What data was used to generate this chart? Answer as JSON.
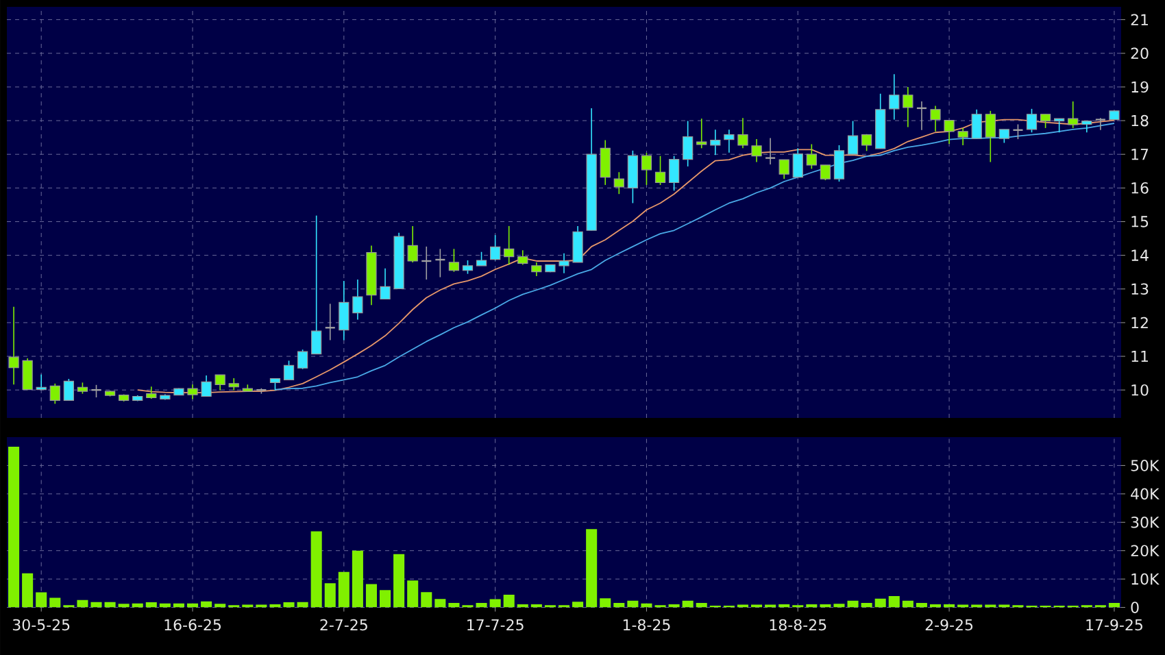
{
  "chart_data": [
    {
      "type": "candlestick",
      "categories": [
        null,
        null,
        null,
        null,
        null,
        null,
        null,
        null,
        null,
        null,
        null,
        null,
        null,
        null,
        null,
        null,
        null,
        null,
        null,
        null,
        null,
        null,
        null,
        null,
        null,
        null,
        null,
        null,
        null,
        null,
        null,
        null,
        null,
        null,
        null,
        null,
        null,
        null,
        null,
        null,
        null,
        null,
        null,
        null,
        null,
        null,
        null,
        null,
        null,
        null,
        null,
        null,
        null,
        null,
        null,
        null,
        null,
        null,
        null,
        null,
        null,
        null,
        null,
        null,
        null,
        null,
        null,
        null,
        null,
        null,
        null,
        null,
        null,
        null,
        null,
        null,
        null,
        null,
        null,
        null,
        null
      ],
      "ohlc": [
        [
          10.98,
          12.47,
          10.16,
          10.66
        ],
        [
          10.87,
          10.94,
          10.0,
          10.01
        ],
        [
          10.01,
          10.46,
          10.0,
          10.08
        ],
        [
          10.12,
          10.19,
          9.59,
          9.69
        ],
        [
          9.69,
          10.33,
          9.69,
          10.26
        ],
        [
          10.08,
          10.22,
          9.89,
          9.96
        ],
        [
          10.0,
          10.15,
          9.78,
          10.0
        ],
        [
          9.96,
          9.98,
          9.81,
          9.84
        ],
        [
          9.85,
          9.87,
          9.66,
          9.69
        ],
        [
          9.69,
          9.84,
          9.67,
          9.81
        ],
        [
          9.89,
          10.1,
          9.74,
          9.77
        ],
        [
          9.73,
          9.87,
          9.71,
          9.84
        ],
        [
          9.85,
          10.05,
          9.85,
          10.04
        ],
        [
          10.04,
          10.16,
          9.73,
          9.86
        ],
        [
          9.81,
          10.43,
          9.81,
          10.24
        ],
        [
          10.45,
          10.45,
          9.99,
          10.16
        ],
        [
          10.19,
          10.35,
          9.99,
          10.09
        ],
        [
          10.04,
          10.16,
          9.96,
          9.96
        ],
        [
          10.0,
          10.05,
          9.89,
          10.0
        ],
        [
          10.22,
          10.34,
          9.99,
          10.34
        ],
        [
          10.3,
          10.87,
          10.3,
          10.73
        ],
        [
          10.65,
          11.2,
          10.62,
          11.14
        ],
        [
          11.07,
          15.18,
          11.07,
          11.75
        ],
        [
          11.85,
          12.56,
          11.48,
          11.85
        ],
        [
          11.78,
          13.24,
          11.48,
          12.6
        ],
        [
          12.29,
          13.28,
          12.09,
          12.77
        ],
        [
          14.08,
          14.29,
          12.52,
          12.82
        ],
        [
          12.7,
          13.61,
          12.7,
          13.07
        ],
        [
          13.01,
          14.67,
          13.01,
          14.56
        ],
        [
          14.29,
          14.87,
          13.79,
          13.83
        ],
        [
          13.83,
          14.26,
          13.28,
          13.83
        ],
        [
          13.87,
          14.19,
          13.35,
          13.87
        ],
        [
          13.79,
          14.19,
          13.51,
          13.55
        ],
        [
          13.55,
          13.85,
          13.45,
          13.69
        ],
        [
          13.69,
          14.1,
          13.69,
          13.85
        ],
        [
          13.88,
          14.6,
          13.85,
          14.25
        ],
        [
          14.19,
          14.87,
          13.72,
          13.96
        ],
        [
          13.96,
          14.15,
          13.72,
          13.76
        ],
        [
          13.69,
          13.79,
          13.38,
          13.51
        ],
        [
          13.51,
          13.72,
          13.5,
          13.72
        ],
        [
          13.69,
          14.06,
          13.47,
          13.83
        ],
        [
          13.79,
          14.87,
          13.79,
          14.7
        ],
        [
          14.74,
          18.37,
          14.74,
          17.0
        ],
        [
          17.18,
          17.42,
          16.09,
          16.32
        ],
        [
          16.27,
          16.47,
          15.82,
          16.03
        ],
        [
          16.0,
          17.11,
          15.55,
          16.96
        ],
        [
          16.96,
          17.04,
          16.09,
          16.54
        ],
        [
          16.47,
          16.95,
          16.09,
          16.16
        ],
        [
          16.16,
          16.95,
          15.92,
          16.85
        ],
        [
          16.85,
          17.99,
          16.64,
          17.52
        ],
        [
          17.37,
          18.06,
          17.18,
          17.29
        ],
        [
          17.27,
          17.73,
          16.98,
          17.42
        ],
        [
          17.44,
          17.73,
          17.05,
          17.58
        ],
        [
          17.58,
          18.08,
          17.18,
          17.27
        ],
        [
          17.25,
          17.45,
          16.77,
          16.95
        ],
        [
          16.89,
          17.48,
          16.7,
          16.89
        ],
        [
          16.84,
          16.84,
          16.27,
          16.41
        ],
        [
          16.32,
          17.18,
          16.32,
          17.01
        ],
        [
          17.0,
          17.3,
          16.57,
          16.68
        ],
        [
          16.68,
          16.68,
          16.23,
          16.27
        ],
        [
          16.27,
          17.27,
          16.19,
          17.11
        ],
        [
          17.0,
          17.99,
          17.0,
          17.55
        ],
        [
          17.58,
          17.6,
          17.1,
          17.27
        ],
        [
          17.17,
          18.8,
          17.17,
          18.33
        ],
        [
          18.35,
          19.38,
          18.03,
          18.76
        ],
        [
          18.76,
          19.0,
          17.81,
          18.39
        ],
        [
          18.37,
          18.57,
          17.72,
          18.37
        ],
        [
          18.33,
          18.44,
          17.68,
          18.03
        ],
        [
          18.01,
          18.01,
          17.31,
          17.68
        ],
        [
          17.68,
          17.78,
          17.27,
          17.51
        ],
        [
          17.47,
          18.33,
          17.47,
          18.19
        ],
        [
          18.19,
          18.29,
          16.77,
          17.51
        ],
        [
          17.47,
          17.74,
          17.34,
          17.74
        ],
        [
          17.72,
          17.89,
          17.45,
          17.72
        ],
        [
          17.74,
          18.35,
          17.65,
          18.19
        ],
        [
          18.19,
          18.19,
          17.78,
          17.99
        ],
        [
          17.99,
          18.06,
          17.65,
          18.06
        ],
        [
          18.06,
          18.57,
          17.78,
          17.88
        ],
        [
          17.89,
          17.99,
          17.65,
          17.99
        ],
        [
          18.03,
          18.08,
          17.72,
          18.03
        ],
        [
          18.03,
          18.29,
          18.03,
          18.29
        ]
      ],
      "colors": [
        "#80f000",
        "#80f000",
        "#33e6ff",
        "#80f000",
        "#33e6ff",
        "#80f000",
        "#a0a0a0",
        "#80f000",
        "#80f000",
        "#33e6ff",
        "#80f000",
        "#33e6ff",
        "#33e6ff",
        "#80f000",
        "#33e6ff",
        "#80f000",
        "#80f000",
        "#80f000",
        "#a0a0a0",
        "#33e6ff",
        "#33e6ff",
        "#33e6ff",
        "#33e6ff",
        "#a0a0a0",
        "#33e6ff",
        "#33e6ff",
        "#80f000",
        "#33e6ff",
        "#33e6ff",
        "#80f000",
        "#a0a0a0",
        "#a0a0a0",
        "#80f000",
        "#33e6ff",
        "#33e6ff",
        "#33e6ff",
        "#80f000",
        "#80f000",
        "#80f000",
        "#33e6ff",
        "#33e6ff",
        "#33e6ff",
        "#33e6ff",
        "#80f000",
        "#80f000",
        "#33e6ff",
        "#80f000",
        "#80f000",
        "#33e6ff",
        "#33e6ff",
        "#80f000",
        "#33e6ff",
        "#33e6ff",
        "#80f000",
        "#80f000",
        "#a0a0a0",
        "#80f000",
        "#33e6ff",
        "#80f000",
        "#80f000",
        "#33e6ff",
        "#33e6ff",
        "#80f000",
        "#33e6ff",
        "#33e6ff",
        "#80f000",
        "#a0a0a0",
        "#80f000",
        "#80f000",
        "#80f000",
        "#33e6ff",
        "#80f000",
        "#33e6ff",
        "#a0a0a0",
        "#33e6ff",
        "#80f000",
        "#33e6ff",
        "#80f000",
        "#33e6ff",
        "#a0a0a0",
        "#33e6ff"
      ],
      "series": [
        {
          "type": "line",
          "color": "#e8986a",
          "values": [
            null,
            null,
            null,
            null,
            null,
            null,
            null,
            null,
            null,
            10.0,
            9.95,
            9.93,
            9.92,
            9.92,
            9.92,
            9.94,
            9.95,
            9.96,
            9.96,
            9.99,
            10.08,
            10.19,
            10.39,
            10.6,
            10.83,
            11.07,
            11.32,
            11.61,
            11.98,
            12.39,
            12.74,
            12.97,
            13.15,
            13.24,
            13.38,
            13.58,
            13.74,
            13.92,
            13.83,
            13.83,
            13.83,
            13.85,
            14.26,
            14.46,
            14.74,
            15.01,
            15.35,
            15.55,
            15.82,
            16.16,
            16.5,
            16.81,
            16.84,
            16.97,
            17.04,
            17.07,
            17.07,
            17.14,
            17.14,
            16.97,
            16.97,
            16.98,
            16.94,
            17.04,
            17.17,
            17.38,
            17.51,
            17.65,
            17.68,
            17.78,
            17.95,
            17.99,
            18.03,
            18.03,
            17.99,
            17.95,
            17.92,
            17.89,
            17.92,
            17.97,
            18.01
          ]
        },
        {
          "type": "line",
          "color": "#4aaae8",
          "values": [
            null,
            null,
            null,
            null,
            null,
            null,
            null,
            null,
            null,
            null,
            null,
            null,
            null,
            null,
            null,
            null,
            null,
            null,
            null,
            10.01,
            10.04,
            10.05,
            10.12,
            10.22,
            10.3,
            10.39,
            10.57,
            10.73,
            10.98,
            11.21,
            11.44,
            11.64,
            11.85,
            12.02,
            12.23,
            12.43,
            12.66,
            12.84,
            12.97,
            13.11,
            13.28,
            13.45,
            13.58,
            13.85,
            14.06,
            14.26,
            14.46,
            14.64,
            14.74,
            14.94,
            15.14,
            15.35,
            15.55,
            15.68,
            15.86,
            16.0,
            16.19,
            16.32,
            16.46,
            16.59,
            16.73,
            16.82,
            16.94,
            16.97,
            17.11,
            17.21,
            17.27,
            17.35,
            17.44,
            17.47,
            17.47,
            17.49,
            17.49,
            17.54,
            17.58,
            17.62,
            17.68,
            17.74,
            17.78,
            17.85,
            17.92
          ]
        }
      ],
      "ylim": [
        9.17,
        21.38
      ],
      "yticks": [
        10,
        11,
        12,
        13,
        14,
        15,
        16,
        17,
        18,
        19,
        20,
        21
      ],
      "grid": true
    },
    {
      "type": "bar",
      "categories": [
        null,
        null,
        "30-5-25",
        null,
        null,
        null,
        null,
        null,
        null,
        null,
        null,
        null,
        null,
        "16-6-25",
        null,
        null,
        null,
        null,
        null,
        null,
        null,
        null,
        null,
        null,
        "2-7-25",
        null,
        null,
        null,
        null,
        null,
        null,
        null,
        null,
        null,
        null,
        "17-7-25",
        null,
        null,
        null,
        null,
        null,
        null,
        null,
        null,
        null,
        null,
        "1-8-25",
        null,
        null,
        null,
        null,
        null,
        null,
        null,
        null,
        null,
        null,
        "18-8-25",
        null,
        null,
        null,
        null,
        null,
        null,
        null,
        null,
        null,
        null,
        "2-9-25",
        null,
        null,
        null,
        null,
        null,
        null,
        null,
        null,
        null,
        null,
        null,
        "17-9-25"
      ],
      "color": "#80f000",
      "values": [
        56600,
        12000,
        5300,
        3400,
        800,
        2600,
        1900,
        1900,
        1300,
        1400,
        1800,
        1400,
        1400,
        1400,
        2100,
        1300,
        800,
        1000,
        1000,
        1100,
        1800,
        1900,
        26800,
        8500,
        12500,
        20000,
        8200,
        6100,
        18800,
        9500,
        5400,
        3000,
        1600,
        800,
        1600,
        2900,
        4500,
        1100,
        1100,
        800,
        800,
        2000,
        27600,
        3200,
        1600,
        2400,
        1400,
        800,
        1100,
        2400,
        1600,
        600,
        600,
        1000,
        1000,
        1000,
        1100,
        800,
        1100,
        1100,
        1300,
        2400,
        1600,
        3100,
        4000,
        2400,
        1600,
        1100,
        1100,
        1000,
        1000,
        1000,
        1000,
        800,
        600,
        600,
        600,
        600,
        800,
        800,
        1600
      ],
      "ylim": [
        0,
        60000
      ],
      "yticks": [
        0,
        {
          "value": 10000,
          "label": "10K"
        },
        {
          "value": 20000,
          "label": "20K"
        },
        {
          "value": 30000,
          "label": "30K"
        },
        {
          "value": 40000,
          "label": "40K"
        },
        {
          "value": 50000,
          "label": "50K"
        }
      ],
      "grid": true
    }
  ]
}
